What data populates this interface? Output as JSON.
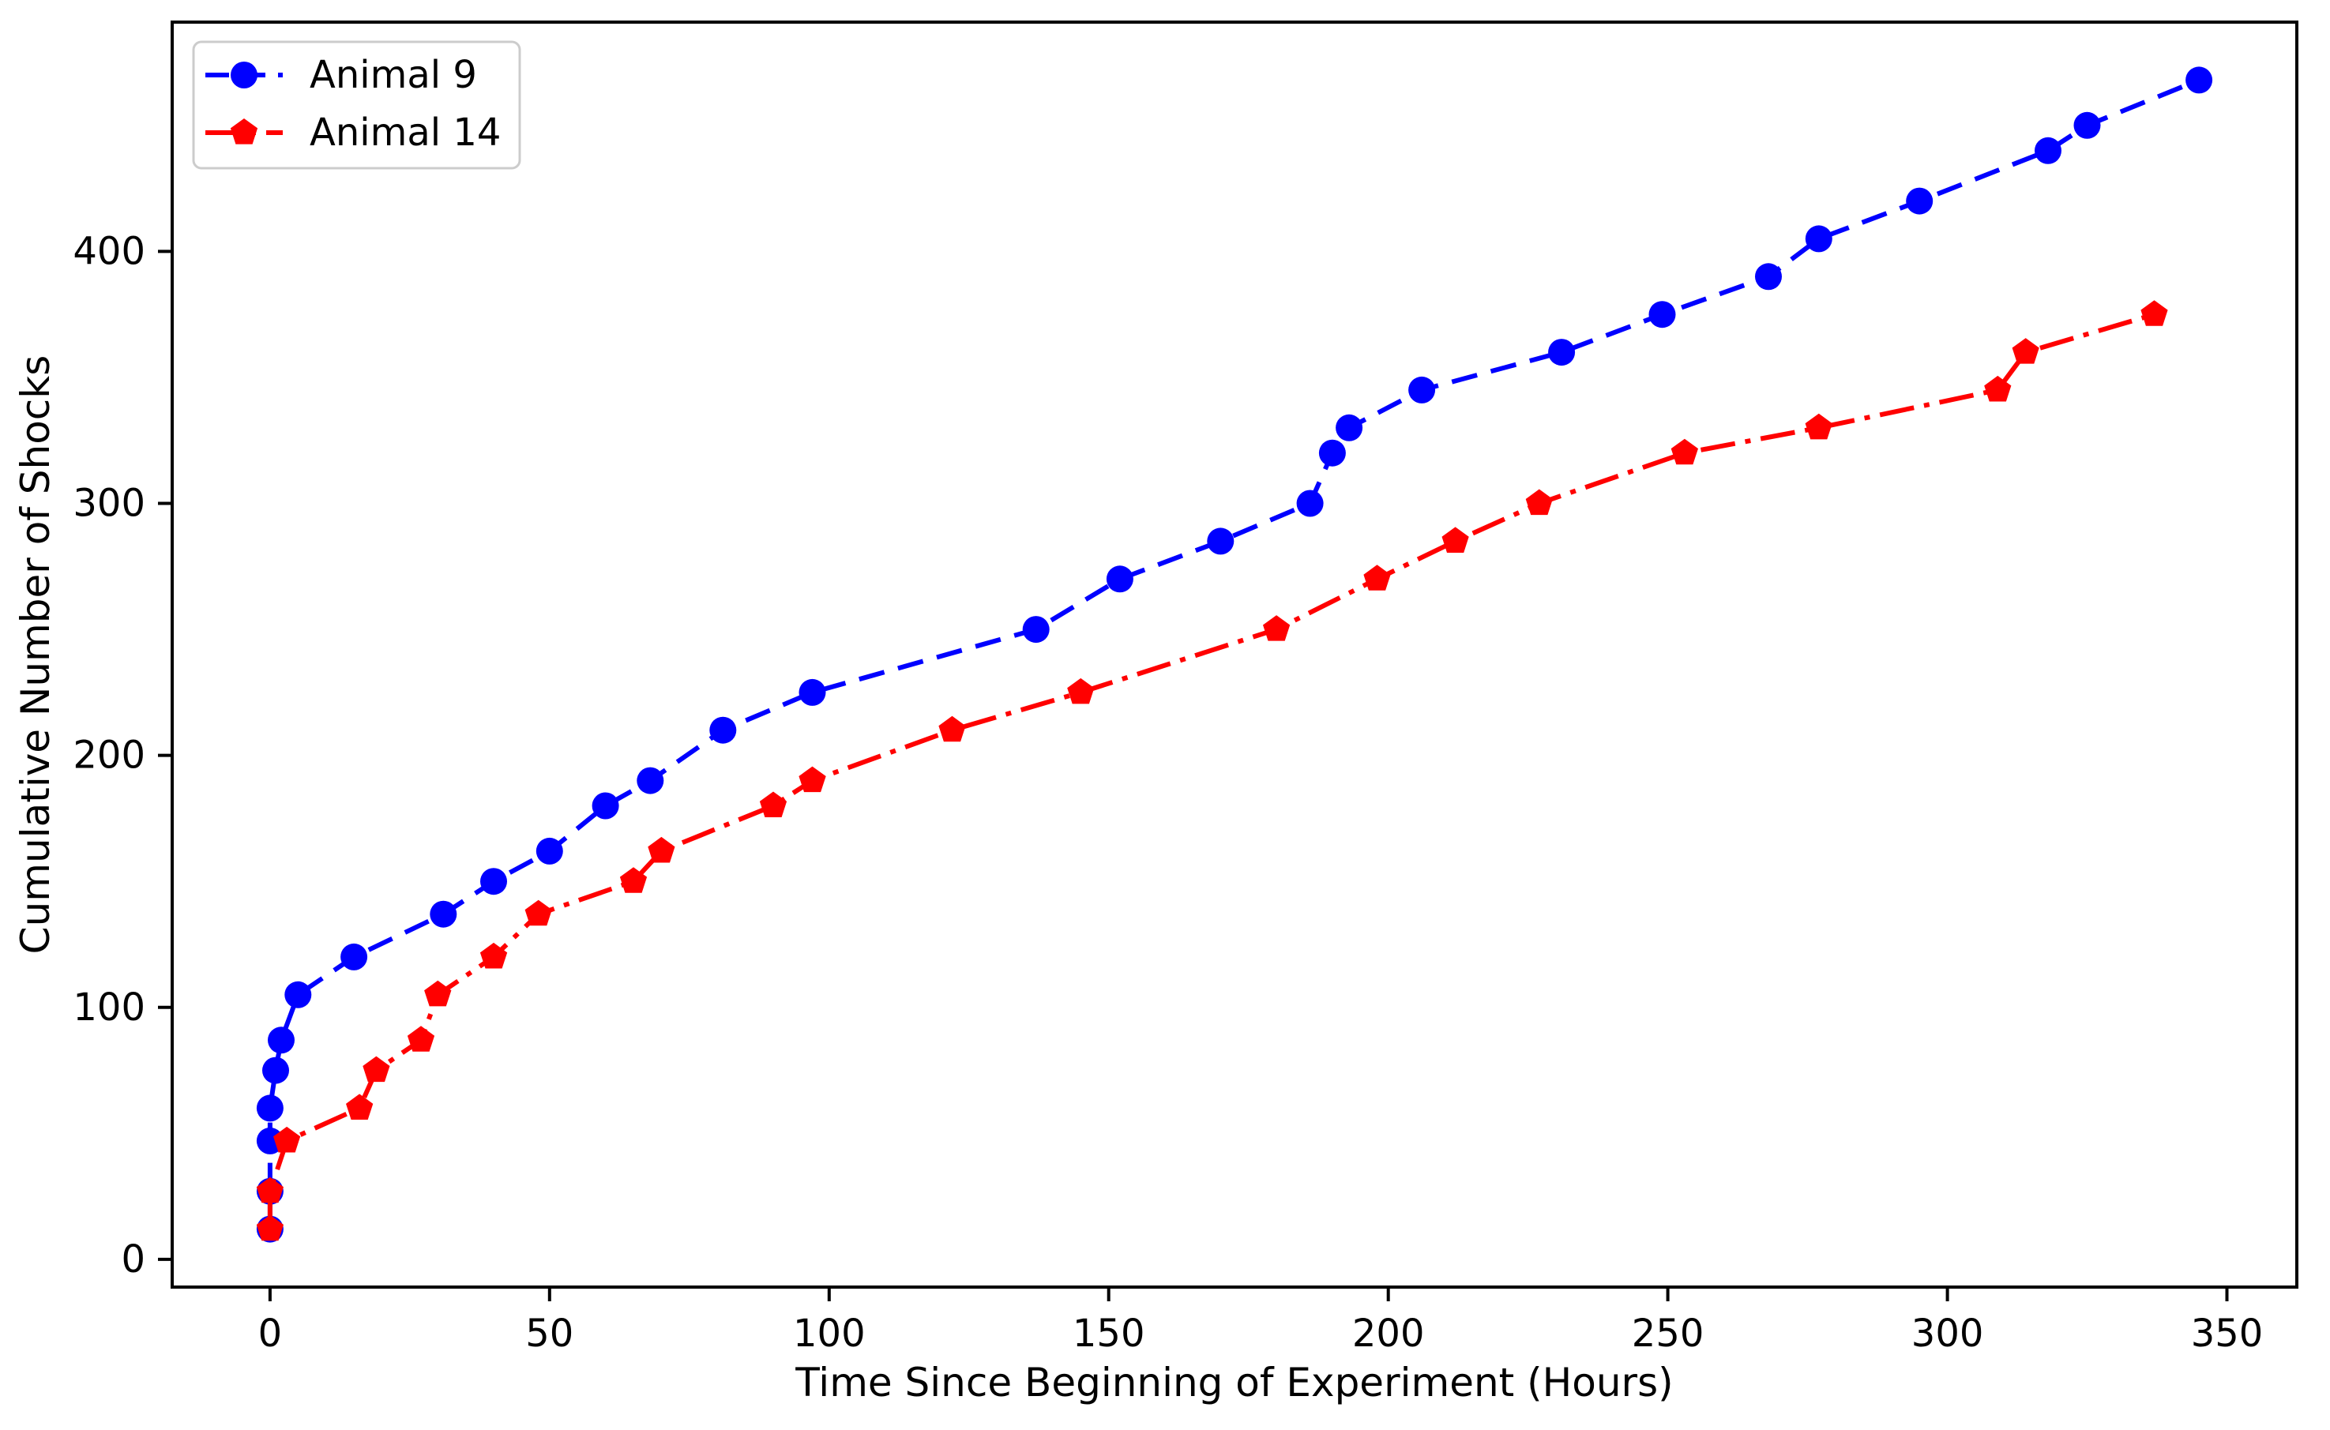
{
  "chart_data": {
    "type": "line",
    "title": "",
    "xlabel": "Time Since Beginning of Experiment (Hours)",
    "ylabel": "Cumulative Number of Shocks",
    "xlim": [
      -17.5,
      362.5
    ],
    "ylim": [
      -11,
      491
    ],
    "xticks": [
      0,
      50,
      100,
      150,
      200,
      250,
      300,
      350
    ],
    "yticks": [
      0,
      100,
      200,
      300,
      400
    ],
    "grid": false,
    "legend_position": "upper left",
    "axis_color": "#000000",
    "legend_border_color": "#cccccc",
    "series": [
      {
        "name": "Animal 9",
        "color": "#0000ff",
        "linestyle": "dashed",
        "marker": "circle",
        "points": [
          [
            0,
            12
          ],
          [
            0,
            27
          ],
          [
            0,
            47
          ],
          [
            0,
            60
          ],
          [
            1,
            75
          ],
          [
            2,
            87
          ],
          [
            5,
            105
          ],
          [
            15,
            120
          ],
          [
            31,
            137
          ],
          [
            40,
            150
          ],
          [
            50,
            162
          ],
          [
            60,
            180
          ],
          [
            68,
            190
          ],
          [
            81,
            210
          ],
          [
            97,
            225
          ],
          [
            137,
            250
          ],
          [
            152,
            270
          ],
          [
            170,
            285
          ],
          [
            186,
            300
          ],
          [
            190,
            320
          ],
          [
            193,
            330
          ],
          [
            206,
            345
          ],
          [
            231,
            360
          ],
          [
            249,
            375
          ],
          [
            268,
            390
          ],
          [
            277,
            405
          ],
          [
            295,
            420
          ],
          [
            318,
            440
          ],
          [
            325,
            450
          ],
          [
            345,
            468
          ]
        ]
      },
      {
        "name": "Animal 14",
        "color": "#ff0000",
        "linestyle": "dashdot",
        "marker": "pentagon",
        "points": [
          [
            0,
            12
          ],
          [
            0,
            27
          ],
          [
            3,
            47
          ],
          [
            16,
            60
          ],
          [
            19,
            75
          ],
          [
            27,
            87
          ],
          [
            30,
            105
          ],
          [
            40,
            120
          ],
          [
            48,
            137
          ],
          [
            65,
            150
          ],
          [
            70,
            162
          ],
          [
            90,
            180
          ],
          [
            97,
            190
          ],
          [
            122,
            210
          ],
          [
            145,
            225
          ],
          [
            180,
            250
          ],
          [
            198,
            270
          ],
          [
            212,
            285
          ],
          [
            227,
            300
          ],
          [
            253,
            320
          ],
          [
            277,
            330
          ],
          [
            309,
            345
          ],
          [
            314,
            360
          ],
          [
            337,
            375
          ]
        ]
      }
    ]
  }
}
